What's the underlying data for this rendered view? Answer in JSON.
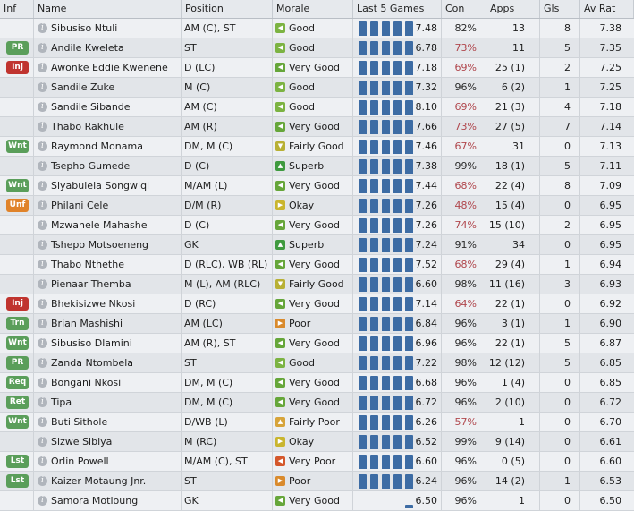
{
  "headers": {
    "inf": "Inf",
    "name": "Name",
    "position": "Position",
    "morale": "Morale",
    "last5": "Last 5 Games",
    "con": "Con",
    "apps": "Apps",
    "gls": "Gls",
    "avrat": "Av Rat"
  },
  "colors": {
    "accent_bar": "#3d6ca4",
    "con_low": "#b0474d",
    "con_ok": "#2b2b2b"
  },
  "rows": [
    {
      "inf": "",
      "name": "Sibusiso Ntuli",
      "position": "AM (C), ST",
      "morale": "Good",
      "last5": [
        4,
        4,
        4,
        4,
        4
      ],
      "rating": "7.48",
      "con": "82%",
      "apps": "13",
      "gls": "8",
      "av": "7.38"
    },
    {
      "inf": "PR",
      "name": "Andile Kweleta",
      "position": "ST",
      "morale": "Good",
      "last5": [
        4,
        4,
        4,
        4,
        4
      ],
      "rating": "6.78",
      "con": "73%",
      "apps": "11",
      "gls": "5",
      "av": "7.35"
    },
    {
      "inf": "Inj",
      "name": "Awonke Eddie Kwenene",
      "position": "D (LC)",
      "morale": "Very Good",
      "last5": [
        4,
        4,
        4,
        4,
        4
      ],
      "rating": "7.18",
      "con": "69%",
      "apps": "25 (1)",
      "gls": "2",
      "av": "7.25"
    },
    {
      "inf": "",
      "name": "Sandile Zuke",
      "position": "M (C)",
      "morale": "Good",
      "last5": [
        4,
        4,
        4,
        4,
        4
      ],
      "rating": "7.32",
      "con": "96%",
      "apps": "6 (2)",
      "gls": "1",
      "av": "7.25"
    },
    {
      "inf": "",
      "name": "Sandile Sibande",
      "position": "AM (C)",
      "morale": "Good",
      "last5": [
        4,
        4,
        4,
        4,
        4
      ],
      "rating": "8.10",
      "con": "69%",
      "apps": "21 (3)",
      "gls": "4",
      "av": "7.18"
    },
    {
      "inf": "",
      "name": "Thabo Rakhule",
      "position": "AM (R)",
      "morale": "Very Good",
      "last5": [
        4,
        4,
        4,
        4,
        4
      ],
      "rating": "7.66",
      "con": "73%",
      "apps": "27 (5)",
      "gls": "7",
      "av": "7.14"
    },
    {
      "inf": "Wnt",
      "name": "Raymond Monama",
      "position": "DM, M (C)",
      "morale": "Fairly Good",
      "last5": [
        4,
        4,
        4,
        4,
        4
      ],
      "rating": "7.46",
      "con": "67%",
      "apps": "31",
      "gls": "0",
      "av": "7.13"
    },
    {
      "inf": "",
      "name": "Tsepho Gumede",
      "position": "D (C)",
      "morale": "Superb",
      "last5": [
        4,
        4,
        4,
        4,
        4
      ],
      "rating": "7.38",
      "con": "99%",
      "apps": "18 (1)",
      "gls": "5",
      "av": "7.11"
    },
    {
      "inf": "Wnt",
      "name": "Siyabulela Songwiqi",
      "position": "M/AM (L)",
      "morale": "Very Good",
      "last5": [
        4,
        4,
        4,
        4,
        4
      ],
      "rating": "7.44",
      "con": "68%",
      "apps": "22 (4)",
      "gls": "8",
      "av": "7.09"
    },
    {
      "inf": "Unf",
      "name": "Philani Cele",
      "position": "D/M (R)",
      "morale": "Okay",
      "last5": [
        4,
        4,
        4,
        4,
        4
      ],
      "rating": "7.26",
      "con": "48%",
      "apps": "15 (4)",
      "gls": "0",
      "av": "6.95"
    },
    {
      "inf": "",
      "name": "Mzwanele Mahashe",
      "position": "D (C)",
      "morale": "Very Good",
      "last5": [
        4,
        4,
        4,
        4,
        4
      ],
      "rating": "7.26",
      "con": "74%",
      "apps": "15 (10)",
      "gls": "2",
      "av": "6.95"
    },
    {
      "inf": "",
      "name": "Tshepo Motsoeneng",
      "position": "GK",
      "morale": "Superb",
      "last5": [
        4,
        4,
        4,
        4,
        4
      ],
      "rating": "7.24",
      "con": "91%",
      "apps": "34",
      "gls": "0",
      "av": "6.95"
    },
    {
      "inf": "",
      "name": "Thabo Nthethe",
      "position": "D (RLC), WB (RL)",
      "morale": "Very Good",
      "last5": [
        4,
        4,
        4,
        4,
        4
      ],
      "rating": "7.52",
      "con": "68%",
      "apps": "29 (4)",
      "gls": "1",
      "av": "6.94"
    },
    {
      "inf": "",
      "name": "Pienaar Themba",
      "position": "M (L), AM (RLC)",
      "morale": "Fairly Good",
      "last5": [
        4,
        4,
        4,
        4,
        4
      ],
      "rating": "6.60",
      "con": "98%",
      "apps": "11 (16)",
      "gls": "3",
      "av": "6.93"
    },
    {
      "inf": "Inj",
      "name": "Bhekisizwe Nkosi",
      "position": "D (RC)",
      "morale": "Very Good",
      "last5": [
        4,
        4,
        4,
        4,
        4
      ],
      "rating": "7.14",
      "con": "64%",
      "apps": "22 (1)",
      "gls": "0",
      "av": "6.92"
    },
    {
      "inf": "Trn",
      "name": "Brian Mashishi",
      "position": "AM (LC)",
      "morale": "Poor",
      "last5": [
        4,
        4,
        4,
        4,
        4
      ],
      "rating": "6.84",
      "con": "96%",
      "apps": "3 (1)",
      "gls": "1",
      "av": "6.90"
    },
    {
      "inf": "Wnt",
      "name": "Sibusiso Dlamini",
      "position": "AM (R), ST",
      "morale": "Very Good",
      "last5": [
        4,
        4,
        4,
        4,
        4
      ],
      "rating": "6.96",
      "con": "96%",
      "apps": "22 (1)",
      "gls": "5",
      "av": "6.87"
    },
    {
      "inf": "PR",
      "name": "Zanda Ntombela",
      "position": "ST",
      "morale": "Good",
      "last5": [
        4,
        4,
        4,
        4,
        4
      ],
      "rating": "7.22",
      "con": "98%",
      "apps": "12 (12)",
      "gls": "5",
      "av": "6.85"
    },
    {
      "inf": "Req",
      "name": "Bongani Nkosi",
      "position": "DM, M (C)",
      "morale": "Very Good",
      "last5": [
        4,
        4,
        4,
        4,
        4
      ],
      "rating": "6.68",
      "con": "96%",
      "apps": "1 (4)",
      "gls": "0",
      "av": "6.85"
    },
    {
      "inf": "Ret",
      "name": "Tipa",
      "position": "DM, M (C)",
      "morale": "Very Good",
      "last5": [
        4,
        4,
        4,
        4,
        4
      ],
      "rating": "6.72",
      "con": "96%",
      "apps": "2 (10)",
      "gls": "0",
      "av": "6.72"
    },
    {
      "inf": "Wnt",
      "name": "Buti Sithole",
      "position": "D/WB (L)",
      "morale": "Fairly Poor",
      "last5": [
        4,
        4,
        4,
        4,
        4
      ],
      "rating": "6.26",
      "con": "57%",
      "apps": "1",
      "gls": "0",
      "av": "6.70"
    },
    {
      "inf": "",
      "name": "Sizwe Sibiya",
      "position": "M (RC)",
      "morale": "Okay",
      "last5": [
        4,
        4,
        4,
        4,
        4
      ],
      "rating": "6.52",
      "con": "99%",
      "apps": "9 (14)",
      "gls": "0",
      "av": "6.61"
    },
    {
      "inf": "Lst",
      "name": "Orlin Powell",
      "position": "M/AM (C), ST",
      "morale": "Very Poor",
      "last5": [
        4,
        4,
        4,
        4,
        4
      ],
      "rating": "6.60",
      "con": "96%",
      "apps": "0 (5)",
      "gls": "0",
      "av": "6.60"
    },
    {
      "inf": "Lst",
      "name": "Kaizer Motaung Jnr.",
      "position": "ST",
      "morale": "Poor",
      "last5": [
        4,
        4,
        4,
        4,
        4
      ],
      "rating": "6.24",
      "con": "96%",
      "apps": "14 (2)",
      "gls": "1",
      "av": "6.53"
    },
    {
      "inf": "",
      "name": "Samora Motloung",
      "position": "GK",
      "morale": "Very Good",
      "last5": [
        1
      ],
      "rating": "6.50",
      "con": "96%",
      "apps": "1",
      "gls": "0",
      "av": "6.50"
    }
  ]
}
